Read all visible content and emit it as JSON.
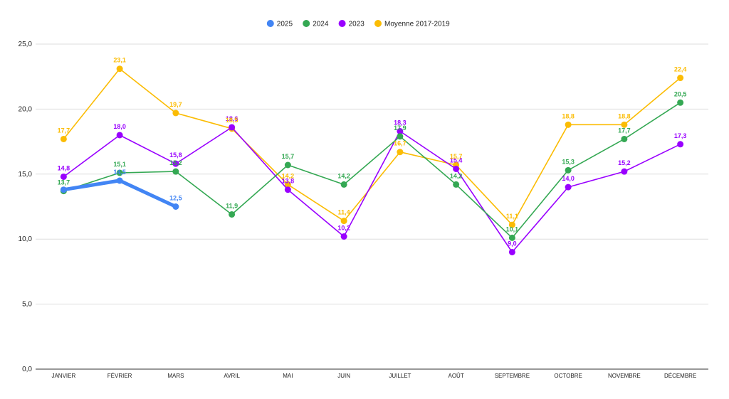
{
  "chart_data": {
    "type": "line",
    "title": "",
    "xlabel": "",
    "ylabel": "",
    "ylim": [
      0,
      25
    ],
    "y_ticks": [
      "0,0",
      "5,0",
      "10,0",
      "15,0",
      "20,0",
      "25,0"
    ],
    "grid": true,
    "legend_position": "top-center",
    "categories": [
      "JANVIER",
      "FÉVRIER",
      "MARS",
      "AVRIL",
      "MAI",
      "JUIN",
      "JUILLET",
      "AOÛT",
      "SEPTEMBRE",
      "OCTOBRE",
      "NOVEMBRE",
      "DÉCEMBRE"
    ],
    "series": [
      {
        "name": "2025",
        "color": "#4285F4",
        "values": [
          13.8,
          14.5,
          12.5,
          null,
          null,
          null,
          null,
          null,
          null,
          null,
          null,
          null
        ],
        "labels": [
          "",
          "14,5",
          "12,5",
          "",
          "",
          "",
          "",
          "",
          "",
          "",
          "",
          ""
        ]
      },
      {
        "name": "2024",
        "color": "#34A853",
        "values": [
          13.7,
          15.1,
          15.2,
          11.9,
          15.7,
          14.2,
          17.9,
          14.2,
          10.1,
          15.3,
          17.7,
          20.5
        ],
        "labels": [
          "13,7",
          "15,1",
          "15,2",
          "11,9",
          "15,7",
          "14,2",
          "17,9",
          "14,2",
          "10,1",
          "15,3",
          "17,7",
          "20,5"
        ]
      },
      {
        "name": "2023",
        "color": "#9900FF",
        "values": [
          14.8,
          18.0,
          15.8,
          18.6,
          13.8,
          10.2,
          18.3,
          15.4,
          9.0,
          14.0,
          15.2,
          17.3
        ],
        "labels": [
          "14,8",
          "18,0",
          "15,8",
          "18,6",
          "13,8",
          "10,2",
          "18,3",
          "15,4",
          "9,0",
          "14,0",
          "15,2",
          "17,3"
        ]
      },
      {
        "name": "Moyenne 2017-2019",
        "color": "#FBBC04",
        "values": [
          17.7,
          23.1,
          19.7,
          18.5,
          14.2,
          11.4,
          16.7,
          15.7,
          11.1,
          18.8,
          18.8,
          22.4
        ],
        "labels": [
          "17,7",
          "23,1",
          "19,7",
          "18,5",
          "14,2",
          "11,4",
          "16,7",
          "15,7",
          "11,1",
          "18,8",
          "18,8",
          "22,4"
        ]
      }
    ]
  }
}
